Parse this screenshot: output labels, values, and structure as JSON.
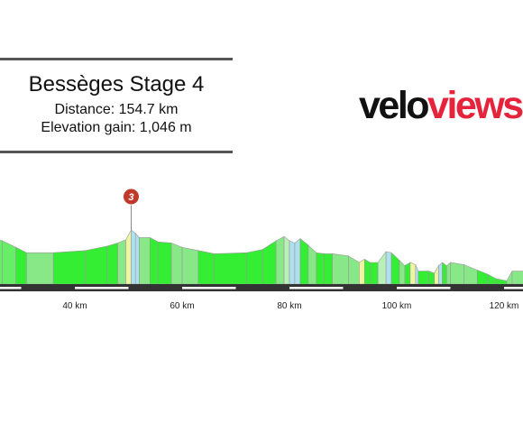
{
  "header": {
    "title": "Bessèges Stage 4",
    "distance_line": "Distance: 154.7 km",
    "elevation_line": "Elevation gain: 1,046 m"
  },
  "logo": {
    "part1": "velo",
    "part2": "views",
    "color1": "#111111",
    "color2": "#e5233b"
  },
  "chart_data": {
    "type": "area",
    "title": "",
    "xlabel": "",
    "ylabel": "",
    "x_unit": "km",
    "x_ticks": [
      {
        "km": 40,
        "label": "40 km"
      },
      {
        "km": 60,
        "label": "60 km"
      },
      {
        "km": 80,
        "label": "80 km"
      },
      {
        "km": 100,
        "label": "100 km"
      },
      {
        "km": 120,
        "label": "120 km"
      }
    ],
    "km_markers": [
      {
        "from": 20,
        "to": 30,
        "color": "#ffffff"
      },
      {
        "from": 40,
        "to": 50,
        "color": "#ffffff"
      },
      {
        "from": 60,
        "to": 70,
        "color": "#ffffff"
      },
      {
        "from": 80,
        "to": 90,
        "color": "#ffffff"
      },
      {
        "from": 100,
        "to": 110,
        "color": "#ffffff"
      },
      {
        "from": 120,
        "to": 130,
        "color": "#ffffff"
      }
    ],
    "climbs": [
      {
        "number": "3",
        "km": 50.5
      }
    ],
    "profile": [
      {
        "km": 25.0,
        "elev": 84
      },
      {
        "km": 26.5,
        "elev": 80
      },
      {
        "km": 29.0,
        "elev": 68
      },
      {
        "km": 31.0,
        "elev": 58
      },
      {
        "km": 36.0,
        "elev": 58
      },
      {
        "km": 42.0,
        "elev": 62
      },
      {
        "km": 46.0,
        "elev": 70
      },
      {
        "km": 48.0,
        "elev": 76
      },
      {
        "km": 49.5,
        "elev": 82
      },
      {
        "km": 50.5,
        "elev": 100
      },
      {
        "km": 51.3,
        "elev": 94
      },
      {
        "km": 52.0,
        "elev": 86
      },
      {
        "km": 54.0,
        "elev": 86
      },
      {
        "km": 55.5,
        "elev": 78
      },
      {
        "km": 58.0,
        "elev": 76
      },
      {
        "km": 60.0,
        "elev": 68
      },
      {
        "km": 63.0,
        "elev": 62
      },
      {
        "km": 66.0,
        "elev": 56
      },
      {
        "km": 72.0,
        "elev": 58
      },
      {
        "km": 75.0,
        "elev": 64
      },
      {
        "km": 77.5,
        "elev": 80
      },
      {
        "km": 79.0,
        "elev": 88
      },
      {
        "km": 80.0,
        "elev": 80
      },
      {
        "km": 81.0,
        "elev": 76
      },
      {
        "km": 82.0,
        "elev": 84
      },
      {
        "km": 83.5,
        "elev": 72
      },
      {
        "km": 85.0,
        "elev": 58
      },
      {
        "km": 86.5,
        "elev": 56
      },
      {
        "km": 88.0,
        "elev": 56
      },
      {
        "km": 91.0,
        "elev": 52
      },
      {
        "km": 93.0,
        "elev": 40
      },
      {
        "km": 94.0,
        "elev": 46
      },
      {
        "km": 95.0,
        "elev": 40
      },
      {
        "km": 96.5,
        "elev": 40
      },
      {
        "km": 98.0,
        "elev": 60
      },
      {
        "km": 99.0,
        "elev": 58
      },
      {
        "km": 100.5,
        "elev": 44
      },
      {
        "km": 101.5,
        "elev": 34
      },
      {
        "km": 102.5,
        "elev": 40
      },
      {
        "km": 103.5,
        "elev": 36
      },
      {
        "km": 104.0,
        "elev": 24
      },
      {
        "km": 106.0,
        "elev": 24
      },
      {
        "km": 107.0,
        "elev": 20
      },
      {
        "km": 107.8,
        "elev": 34
      },
      {
        "km": 108.5,
        "elev": 40
      },
      {
        "km": 109.3,
        "elev": 34
      },
      {
        "km": 110.0,
        "elev": 40
      },
      {
        "km": 112.5,
        "elev": 36
      },
      {
        "km": 115.0,
        "elev": 26
      },
      {
        "km": 117.0,
        "elev": 18
      },
      {
        "km": 118.5,
        "elev": 10
      },
      {
        "km": 120.5,
        "elev": 6
      },
      {
        "km": 121.5,
        "elev": 24
      },
      {
        "km": 124.0,
        "elev": 24
      }
    ],
    "segment_colors": [
      "#66ee66",
      "#66ee66",
      "#33ee33",
      "#88e888",
      "#33ee33",
      "#33ee33",
      "#33ee33",
      "#88e888",
      "#eef5a0",
      "#aee0f0",
      "#aee0f0",
      "#88e888",
      "#33ee33",
      "#33ee33",
      "#88e888",
      "#88e888",
      "#33ee33",
      "#33ee33",
      "#33ee33",
      "#33ee33",
      "#88e888",
      "#b8f0b8",
      "#aee0f0",
      "#aee0f0",
      "#33ee33",
      "#88e888",
      "#33ee33",
      "#33ee33",
      "#88e888",
      "#88e888",
      "#eef5a0",
      "#33ee33",
      "#33ee33",
      "#b8f0b8",
      "#aee0f0",
      "#33ee33",
      "#88e888",
      "#33ee33",
      "#eef5a0",
      "#aee0f0",
      "#33ee33",
      "#33ee33",
      "#eef5a0",
      "#aee0f0",
      "#33ee33",
      "#88e888",
      "#88e888",
      "#88e888",
      "#33ee33",
      "#33ee33",
      "#33ee33",
      "#88e888",
      "#88e888"
    ],
    "colors": {
      "road": "#333333",
      "outline": "#999999",
      "marker_fill": "#c0392b",
      "marker_stroke": "#ffffff"
    }
  }
}
